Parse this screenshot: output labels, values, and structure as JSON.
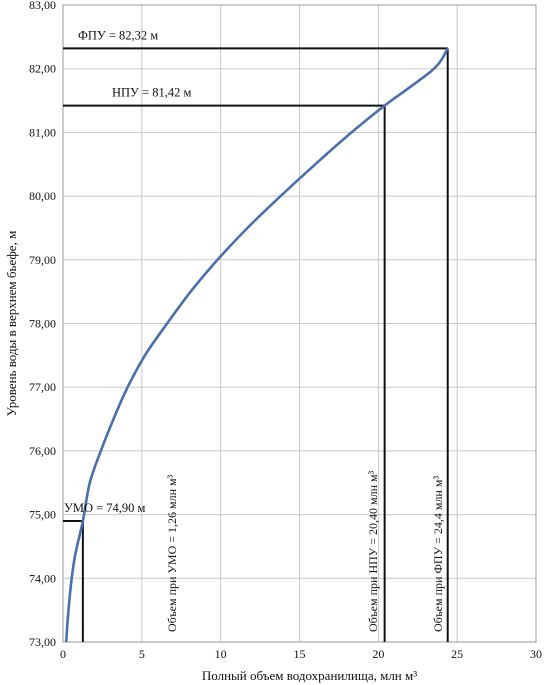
{
  "chart_data": {
    "type": "line",
    "xlabel": "Полный объем водохранилища, млн м³",
    "ylabel": "Уровень воды в верхнем бьефе, м",
    "xlim": [
      0,
      30
    ],
    "ylim": [
      73,
      83
    ],
    "x_ticks": [
      "0",
      "5",
      "10",
      "15",
      "20",
      "25",
      "30"
    ],
    "y_ticks": [
      "73,00",
      "74,00",
      "75,00",
      "76,00",
      "77,00",
      "78,00",
      "79,00",
      "80,00",
      "81,00",
      "82,00",
      "83,00"
    ],
    "grid": true,
    "line_color": "#4a6fad",
    "series": [
      {
        "x": [
          0.2,
          0.35,
          0.55,
          0.8,
          1.26,
          1.7,
          2.4,
          3.2,
          4.1,
          5.2,
          6.6,
          8.1,
          9.8,
          11.7,
          13.8,
          16.0,
          18.3,
          20.4,
          21.5,
          22.5,
          23.3,
          23.8,
          24.1,
          24.4
        ],
        "y": [
          73.0,
          73.5,
          74.0,
          74.4,
          74.9,
          75.5,
          76.0,
          76.5,
          77.0,
          77.5,
          78.0,
          78.5,
          79.0,
          79.5,
          80.0,
          80.5,
          81.0,
          81.42,
          81.62,
          81.8,
          81.95,
          82.07,
          82.18,
          82.32
        ]
      }
    ],
    "annotations": {
      "fpu": {
        "label": "ФПУ = 82,32 м",
        "x": 24.4,
        "y": 82.32
      },
      "npu": {
        "label": "НПУ = 81,42 м",
        "x": 20.4,
        "y": 81.42
      },
      "umo": {
        "label": "УМО = 74,90 м",
        "x": 1.26,
        "y": 74.9
      },
      "v_umo": {
        "label": "Объем при УМО = 1,26 млн м³"
      },
      "v_npu": {
        "label": "Объем при НПУ = 20,40 млн м³"
      },
      "v_fpu": {
        "label": "Объем при ФПУ = 24,4 млн м³"
      }
    }
  }
}
